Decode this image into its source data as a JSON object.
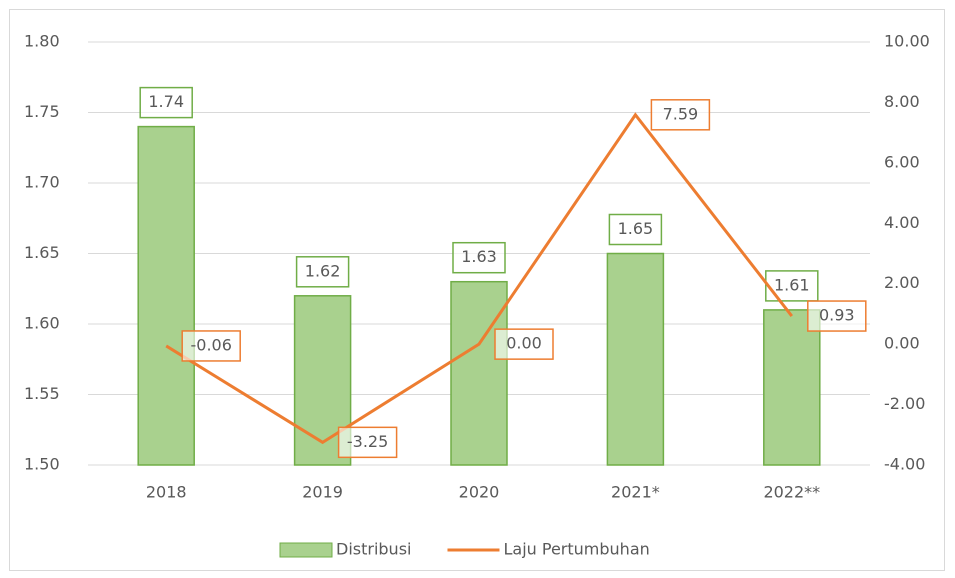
{
  "chart_data": {
    "type": "bar-line",
    "categories": [
      "2018",
      "2019",
      "2020",
      "2021*",
      "2022**"
    ],
    "series": [
      {
        "name": "Distribusi",
        "type": "bar",
        "color": "#a9d18e",
        "edgecolor": "#70ad47",
        "values": [
          1.74,
          1.62,
          1.63,
          1.65,
          1.61
        ]
      },
      {
        "name": "Laju Pertumbuhan",
        "type": "line",
        "axis": "y2",
        "color": "#ed7d31",
        "values": [
          -0.06,
          -3.25,
          0,
          7.59,
          0.93
        ],
        "value_labels": [
          "-0.06",
          "-3.25",
          "0.00",
          "7.59",
          "0.93"
        ]
      }
    ],
    "ylim": [
      1.5,
      1.8
    ],
    "yticks": [
      {
        "value": 1.5,
        "label": "1.50"
      },
      {
        "value": 1.55,
        "label": "1.55"
      },
      {
        "value": 1.6,
        "label": "1.60"
      },
      {
        "value": 1.65,
        "label": "1.65"
      },
      {
        "value": 1.7,
        "label": "1.70"
      },
      {
        "value": 1.75,
        "label": "1.75"
      },
      {
        "value": 1.8,
        "label": "1.80"
      }
    ],
    "y2lim": [
      -4,
      10
    ],
    "y2ticks": [
      {
        "value": -4,
        "label": "-4.00"
      },
      {
        "value": -2,
        "label": "-2.00"
      },
      {
        "value": 0,
        "label": "0.00"
      },
      {
        "value": 2,
        "label": "2.00"
      },
      {
        "value": 4,
        "label": "4.00"
      },
      {
        "value": 6,
        "label": "6.00"
      },
      {
        "value": 8,
        "label": "8.00"
      },
      {
        "value": 10,
        "label": "10.00"
      }
    ],
    "grid": true,
    "legend": "bottom"
  }
}
